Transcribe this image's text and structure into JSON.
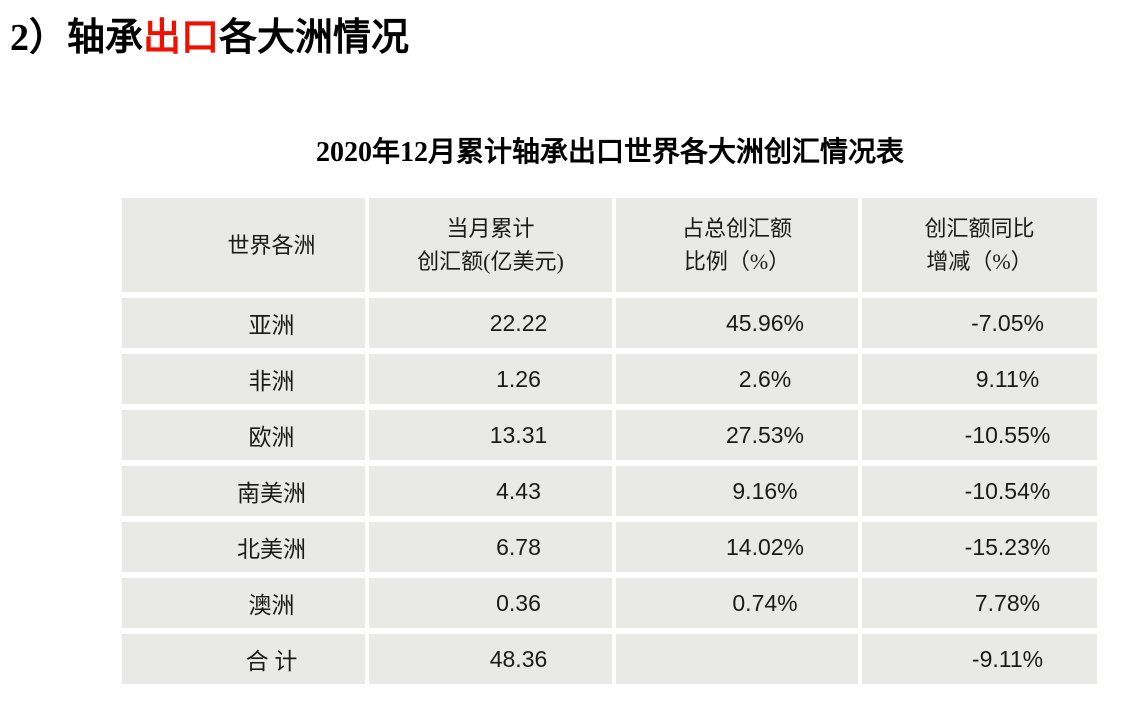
{
  "title": {
    "prefix": "2）轴承",
    "highlight": "出口",
    "suffix": "各大洲情况"
  },
  "colors": {
    "highlight_red": "#ee1100",
    "cell_background": "#e9eae7",
    "text": "#1a1a1a"
  },
  "table": {
    "headers": [
      {
        "line1": "世界各洲",
        "line2": ""
      },
      {
        "line1": "当月累计",
        "line2": "创汇额(亿美元)"
      },
      {
        "line1": "占总创汇额",
        "line2": "比例（%）"
      },
      {
        "line1": "创汇额同比",
        "line2": "增减（%）"
      }
    ]
  },
  "chart_data": {
    "type": "table",
    "title": "2020年12月累计轴承出口世界各大洲创汇情况表",
    "columns": [
      "世界各洲",
      "当月累计创汇额(亿美元)",
      "占总创汇额比例（%）",
      "创汇额同比增减（%）"
    ],
    "rows": [
      [
        "亚洲",
        "22.22",
        "45.96%",
        "-7.05%"
      ],
      [
        "非洲",
        "1.26",
        "2.6%",
        "9.11%"
      ],
      [
        "欧洲",
        "13.31",
        "27.53%",
        "-10.55%"
      ],
      [
        "南美洲",
        "4.43",
        "9.16%",
        "-10.54%"
      ],
      [
        "北美洲",
        "6.78",
        "14.02%",
        "-15.23%"
      ],
      [
        "澳洲",
        "0.36",
        "0.74%",
        "7.78%"
      ],
      [
        "合 计",
        "48.36",
        "",
        "-9.11%"
      ]
    ]
  }
}
